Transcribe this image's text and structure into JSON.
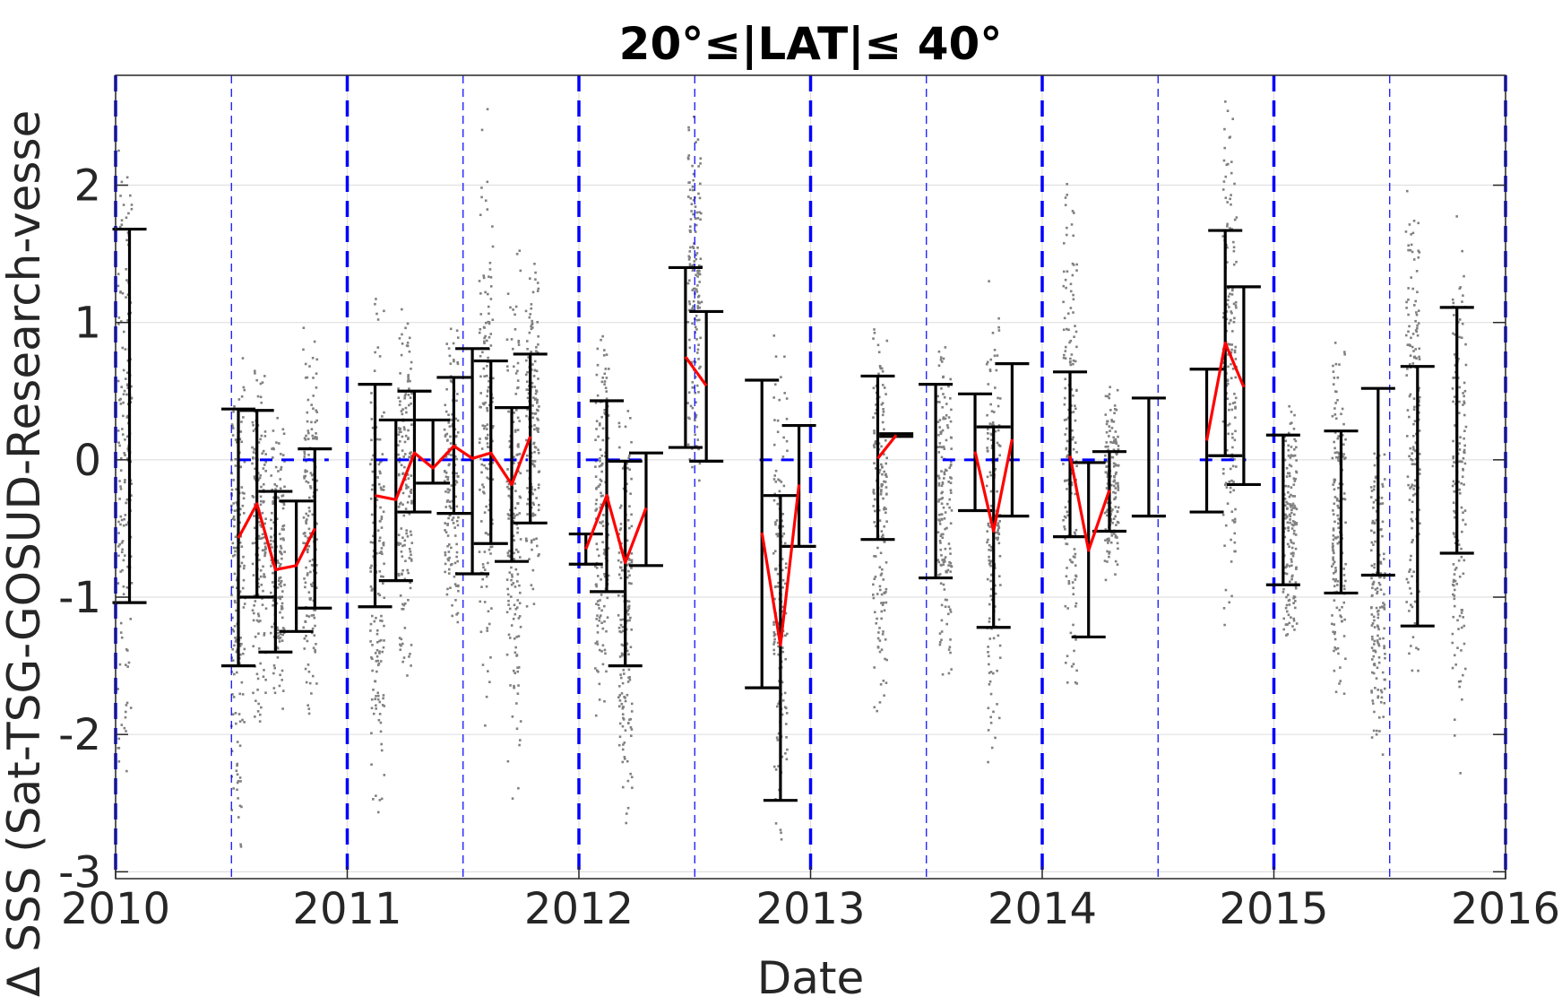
{
  "chart_data": {
    "type": "scatter",
    "title": "20°≤|LAT|≤ 40°",
    "xlabel": "Date",
    "ylabel": "Δ SSS (Sat-TSG-GOSUD-Research-vesse",
    "xlim": [
      2010,
      2016
    ],
    "ylim": [
      -3.05,
      2.8
    ],
    "xticks": [
      "2010",
      "2011",
      "2012",
      "2013",
      "2014",
      "2015",
      "2016"
    ],
    "yticks": [
      "-3",
      "-2",
      "-1",
      "0",
      "1",
      "2"
    ],
    "ytick_values": [
      -3,
      -2,
      -1,
      0,
      1,
      2
    ],
    "grid": true,
    "colors": {
      "scatter": "#808080",
      "errorbar": "#000000",
      "mean_line": "#ff0000",
      "year_lines": "#0000ff",
      "zero_ref": "#0000ff",
      "grid": "#e0e0e0"
    },
    "year_lines": [
      2010,
      2011,
      2012,
      2013,
      2014,
      2015,
      2016
    ],
    "halfyear_lines": [
      2010.5,
      2011.5,
      2012.5,
      2013.5,
      2014.5,
      2015.5
    ],
    "zero_segments": [
      [
        2010.53,
        2010.92
      ],
      [
        2011.12,
        2011.78
      ],
      [
        2012.03,
        2012.28
      ],
      [
        2012.78,
        2012.95
      ],
      [
        2013.57,
        2013.92
      ],
      [
        2014.08,
        2014.28
      ],
      [
        2014.68,
        2014.88
      ]
    ],
    "errorbars": [
      {
        "x": 2010.06,
        "low": -1.04,
        "high": 1.68
      },
      {
        "x": 2010.53,
        "low": -1.5,
        "high": 0.37
      },
      {
        "x": 2010.61,
        "low": -1.0,
        "high": 0.36
      },
      {
        "x": 2010.69,
        "low": -1.4,
        "high": -0.23
      },
      {
        "x": 2010.78,
        "low": -1.25,
        "high": -0.3
      },
      {
        "x": 2010.86,
        "low": -1.08,
        "high": 0.08
      },
      {
        "x": 2011.12,
        "low": -1.07,
        "high": 0.55
      },
      {
        "x": 2011.21,
        "low": -0.88,
        "high": 0.29
      },
      {
        "x": 2011.29,
        "low": -0.38,
        "high": 0.5
      },
      {
        "x": 2011.37,
        "low": -0.17,
        "high": 0.29
      },
      {
        "x": 2011.46,
        "low": -0.39,
        "high": 0.6
      },
      {
        "x": 2011.54,
        "low": -0.83,
        "high": 0.81
      },
      {
        "x": 2011.62,
        "low": -0.61,
        "high": 0.72
      },
      {
        "x": 2011.71,
        "low": -0.74,
        "high": 0.38
      },
      {
        "x": 2011.79,
        "low": -0.46,
        "high": 0.77
      },
      {
        "x": 2012.03,
        "low": -0.76,
        "high": -0.54
      },
      {
        "x": 2012.12,
        "low": -0.96,
        "high": 0.43
      },
      {
        "x": 2012.2,
        "low": -1.5,
        "high": -0.01
      },
      {
        "x": 2012.29,
        "low": -0.77,
        "high": 0.05
      },
      {
        "x": 2012.46,
        "low": 0.09,
        "high": 1.4
      },
      {
        "x": 2012.55,
        "low": -0.01,
        "high": 1.08
      },
      {
        "x": 2012.79,
        "low": -1.66,
        "high": 0.58
      },
      {
        "x": 2012.87,
        "low": -2.48,
        "high": -0.26
      },
      {
        "x": 2012.95,
        "low": -0.63,
        "high": 0.25
      },
      {
        "x": 2013.29,
        "low": -0.58,
        "high": 0.61
      },
      {
        "x": 2013.37,
        "low": 0.17,
        "high": 0.19
      },
      {
        "x": 2013.54,
        "low": -0.86,
        "high": 0.55
      },
      {
        "x": 2013.71,
        "low": -0.37,
        "high": 0.48
      },
      {
        "x": 2013.79,
        "low": -1.22,
        "high": 0.24
      },
      {
        "x": 2013.87,
        "low": -0.41,
        "high": 0.7
      },
      {
        "x": 2014.12,
        "low": -0.56,
        "high": 0.64
      },
      {
        "x": 2014.2,
        "low": -1.29,
        "high": -0.02
      },
      {
        "x": 2014.29,
        "low": -0.52,
        "high": 0.06
      },
      {
        "x": 2014.46,
        "low": -0.41,
        "high": 0.45
      },
      {
        "x": 2014.71,
        "low": -0.38,
        "high": 0.66
      },
      {
        "x": 2014.79,
        "low": 0.03,
        "high": 1.67
      },
      {
        "x": 2014.87,
        "low": -0.18,
        "high": 1.26
      },
      {
        "x": 2015.04,
        "low": -0.91,
        "high": 0.18
      },
      {
        "x": 2015.29,
        "low": -0.97,
        "high": 0.21
      },
      {
        "x": 2015.45,
        "low": -0.84,
        "high": 0.52
      },
      {
        "x": 2015.62,
        "low": -1.21,
        "high": 0.68
      },
      {
        "x": 2015.79,
        "low": -0.68,
        "high": 1.11
      }
    ],
    "series": [
      {
        "x": [
          2010.53,
          2010.61,
          2010.69,
          2010.78,
          2010.86
        ],
        "y": [
          -0.57,
          -0.32,
          -0.8,
          -0.77,
          -0.5
        ]
      },
      {
        "x": [
          2011.12,
          2011.21,
          2011.29,
          2011.37,
          2011.46,
          2011.54,
          2011.62,
          2011.71,
          2011.79
        ],
        "y": [
          -0.26,
          -0.29,
          0.05,
          -0.06,
          0.1,
          0.01,
          0.05,
          -0.18,
          0.17
        ]
      },
      {
        "x": [
          2012.03,
          2012.12,
          2012.2,
          2012.29
        ],
        "y": [
          -0.65,
          -0.26,
          -0.75,
          -0.35
        ]
      },
      {
        "x": [
          2012.46,
          2012.55
        ],
        "y": [
          0.75,
          0.54
        ]
      },
      {
        "x": [
          2012.79,
          2012.87,
          2012.95
        ],
        "y": [
          -0.53,
          -1.35,
          -0.18
        ]
      },
      {
        "x": [
          2013.29,
          2013.37
        ],
        "y": [
          0.01,
          0.18
        ]
      },
      {
        "x": [
          2013.71,
          2013.79,
          2013.87
        ],
        "y": [
          0.06,
          -0.52,
          0.15
        ]
      },
      {
        "x": [
          2014.12,
          2014.2,
          2014.29
        ],
        "y": [
          0.03,
          -0.66,
          -0.22
        ]
      },
      {
        "x": [
          2014.71,
          2014.79,
          2014.87
        ],
        "y": [
          0.14,
          0.85,
          0.53
        ]
      }
    ],
    "scatter_clusters": [
      {
        "x": 2010.04,
        "ymin": -2.6,
        "ymax": 2.5
      },
      {
        "x": 2010.53,
        "ymin": -2.9,
        "ymax": 1.0
      },
      {
        "x": 2010.62,
        "ymin": -2.1,
        "ymax": 0.9
      },
      {
        "x": 2010.7,
        "ymin": -2.0,
        "ymax": 0.4
      },
      {
        "x": 2010.84,
        "ymin": -2.0,
        "ymax": 1.1
      },
      {
        "x": 2011.13,
        "ymin": -2.8,
        "ymax": 1.3
      },
      {
        "x": 2011.25,
        "ymin": -1.7,
        "ymax": 1.4
      },
      {
        "x": 2011.45,
        "ymin": -1.4,
        "ymax": 1.1
      },
      {
        "x": 2011.6,
        "ymin": -2.0,
        "ymax": 2.6
      },
      {
        "x": 2011.72,
        "ymin": -2.5,
        "ymax": 1.6
      },
      {
        "x": 2011.8,
        "ymin": -1.1,
        "ymax": 1.6
      },
      {
        "x": 2012.1,
        "ymin": -2.1,
        "ymax": 1.2
      },
      {
        "x": 2012.2,
        "ymin": -2.9,
        "ymax": 0.7
      },
      {
        "x": 2012.5,
        "ymin": -0.2,
        "ymax": 2.7
      },
      {
        "x": 2012.87,
        "ymin": -2.95,
        "ymax": 1.0
      },
      {
        "x": 2013.3,
        "ymin": -2.1,
        "ymax": 1.2
      },
      {
        "x": 2013.58,
        "ymin": -1.7,
        "ymax": 1.1
      },
      {
        "x": 2013.79,
        "ymin": -2.3,
        "ymax": 1.4
      },
      {
        "x": 2014.12,
        "ymin": -1.9,
        "ymax": 2.1
      },
      {
        "x": 2014.3,
        "ymin": -0.9,
        "ymax": 0.6
      },
      {
        "x": 2014.81,
        "ymin": -1.3,
        "ymax": 2.7
      },
      {
        "x": 2015.07,
        "ymin": -1.5,
        "ymax": 0.6
      },
      {
        "x": 2015.28,
        "ymin": -1.8,
        "ymax": 1.0
      },
      {
        "x": 2015.45,
        "ymin": -2.2,
        "ymax": 0.3
      },
      {
        "x": 2015.6,
        "ymin": -1.8,
        "ymax": 2.2
      },
      {
        "x": 2015.8,
        "ymin": -2.3,
        "ymax": 2.0
      }
    ]
  }
}
